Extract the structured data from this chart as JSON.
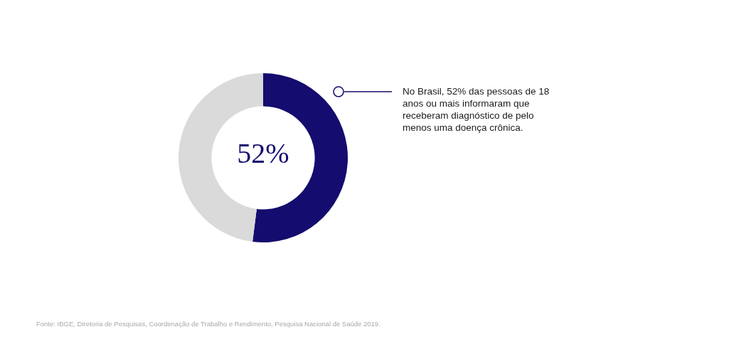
{
  "chart_data": {
    "type": "donut",
    "categories": [
      null,
      null
    ],
    "values": [
      52,
      48
    ],
    "colors": [
      "#140c6e",
      "#dadada"
    ],
    "value_labels": [
      "52%",
      null
    ],
    "annotations": [
      "No Brasil, 52% das pessoas de 18 anos ou mais informaram que receberam diagnóstico de pelo menos uma doença crônica.",
      "Fonte: IBGE, Diretoria de Pesquisas, Coordenação de Trabalho e Rendimento, Pesquisa Nacional de Saúde 2019."
    ]
  }
}
